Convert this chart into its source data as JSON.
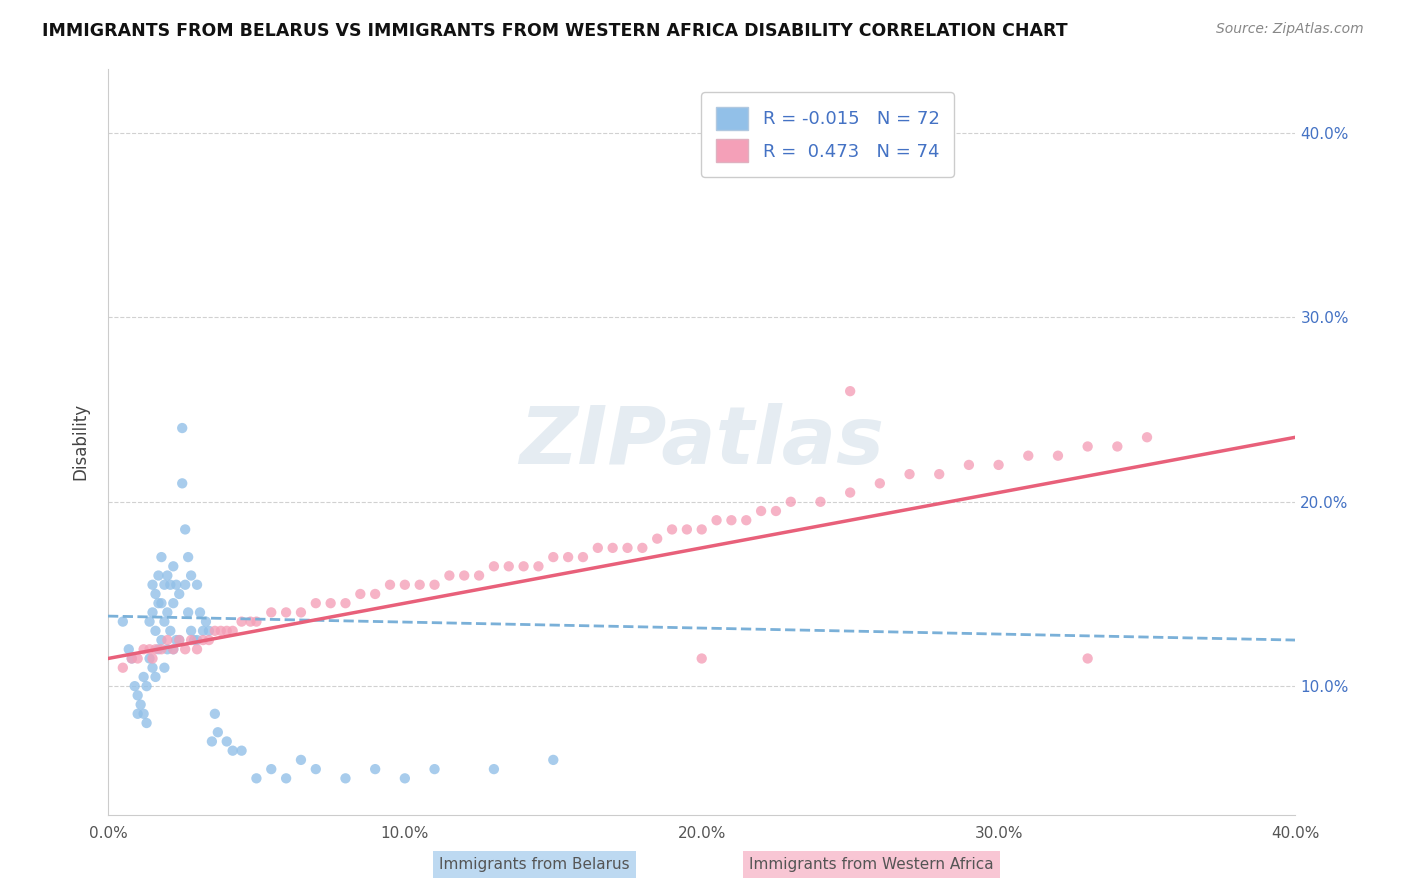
{
  "title": "IMMIGRANTS FROM BELARUS VS IMMIGRANTS FROM WESTERN AFRICA DISABILITY CORRELATION CHART",
  "source_text": "Source: ZipAtlas.com",
  "ylabel": "Disability",
  "legend_r1": "-0.015",
  "legend_n1": "72",
  "legend_r2": "0.473",
  "legend_n2": "74",
  "xmin": 0.0,
  "xmax": 0.4,
  "ymin": 0.03,
  "ymax": 0.435,
  "xticks": [
    0.0,
    0.1,
    0.2,
    0.3,
    0.4
  ],
  "xtick_labels": [
    "0.0%",
    "10.0%",
    "20.0%",
    "30.0%",
    "40.0%"
  ],
  "yticks": [
    0.1,
    0.2,
    0.3,
    0.4
  ],
  "ytick_labels": [
    "10.0%",
    "20.0%",
    "30.0%",
    "40.0%"
  ],
  "color_blue": "#92c0e8",
  "color_pink": "#f4a0b8",
  "line_blue": "#7ab0d8",
  "line_pink": "#e8607a",
  "watermark": "ZIPatlas",
  "blue_scatter_x": [
    0.005,
    0.007,
    0.008,
    0.009,
    0.01,
    0.01,
    0.011,
    0.012,
    0.012,
    0.013,
    0.013,
    0.014,
    0.014,
    0.015,
    0.015,
    0.015,
    0.016,
    0.016,
    0.016,
    0.017,
    0.017,
    0.017,
    0.018,
    0.018,
    0.018,
    0.019,
    0.019,
    0.019,
    0.02,
    0.02,
    0.02,
    0.021,
    0.021,
    0.022,
    0.022,
    0.022,
    0.023,
    0.023,
    0.024,
    0.024,
    0.025,
    0.025,
    0.026,
    0.026,
    0.027,
    0.027,
    0.028,
    0.028,
    0.029,
    0.03,
    0.03,
    0.031,
    0.032,
    0.033,
    0.034,
    0.035,
    0.036,
    0.037,
    0.04,
    0.042,
    0.045,
    0.05,
    0.055,
    0.06,
    0.065,
    0.07,
    0.08,
    0.09,
    0.1,
    0.11,
    0.13,
    0.15
  ],
  "blue_scatter_y": [
    0.135,
    0.12,
    0.115,
    0.1,
    0.095,
    0.085,
    0.09,
    0.105,
    0.085,
    0.1,
    0.08,
    0.135,
    0.115,
    0.155,
    0.14,
    0.11,
    0.15,
    0.13,
    0.105,
    0.16,
    0.145,
    0.12,
    0.17,
    0.145,
    0.125,
    0.155,
    0.135,
    0.11,
    0.16,
    0.14,
    0.12,
    0.155,
    0.13,
    0.165,
    0.145,
    0.12,
    0.155,
    0.125,
    0.15,
    0.125,
    0.24,
    0.21,
    0.185,
    0.155,
    0.17,
    0.14,
    0.16,
    0.13,
    0.125,
    0.155,
    0.125,
    0.14,
    0.13,
    0.135,
    0.13,
    0.07,
    0.085,
    0.075,
    0.07,
    0.065,
    0.065,
    0.05,
    0.055,
    0.05,
    0.06,
    0.055,
    0.05,
    0.055,
    0.05,
    0.055,
    0.055,
    0.06
  ],
  "pink_scatter_x": [
    0.005,
    0.008,
    0.01,
    0.012,
    0.014,
    0.015,
    0.016,
    0.018,
    0.02,
    0.022,
    0.024,
    0.026,
    0.028,
    0.03,
    0.032,
    0.034,
    0.036,
    0.038,
    0.04,
    0.042,
    0.045,
    0.048,
    0.05,
    0.055,
    0.06,
    0.065,
    0.07,
    0.075,
    0.08,
    0.085,
    0.09,
    0.095,
    0.1,
    0.105,
    0.11,
    0.115,
    0.12,
    0.125,
    0.13,
    0.135,
    0.14,
    0.145,
    0.15,
    0.155,
    0.16,
    0.165,
    0.17,
    0.175,
    0.18,
    0.185,
    0.19,
    0.195,
    0.2,
    0.205,
    0.21,
    0.215,
    0.22,
    0.225,
    0.23,
    0.24,
    0.25,
    0.26,
    0.27,
    0.28,
    0.29,
    0.3,
    0.31,
    0.32,
    0.33,
    0.34,
    0.35,
    0.25,
    0.2,
    0.33
  ],
  "pink_scatter_y": [
    0.11,
    0.115,
    0.115,
    0.12,
    0.12,
    0.115,
    0.12,
    0.12,
    0.125,
    0.12,
    0.125,
    0.12,
    0.125,
    0.12,
    0.125,
    0.125,
    0.13,
    0.13,
    0.13,
    0.13,
    0.135,
    0.135,
    0.135,
    0.14,
    0.14,
    0.14,
    0.145,
    0.145,
    0.145,
    0.15,
    0.15,
    0.155,
    0.155,
    0.155,
    0.155,
    0.16,
    0.16,
    0.16,
    0.165,
    0.165,
    0.165,
    0.165,
    0.17,
    0.17,
    0.17,
    0.175,
    0.175,
    0.175,
    0.175,
    0.18,
    0.185,
    0.185,
    0.185,
    0.19,
    0.19,
    0.19,
    0.195,
    0.195,
    0.2,
    0.2,
    0.205,
    0.21,
    0.215,
    0.215,
    0.22,
    0.22,
    0.225,
    0.225,
    0.23,
    0.23,
    0.235,
    0.26,
    0.115,
    0.115
  ]
}
